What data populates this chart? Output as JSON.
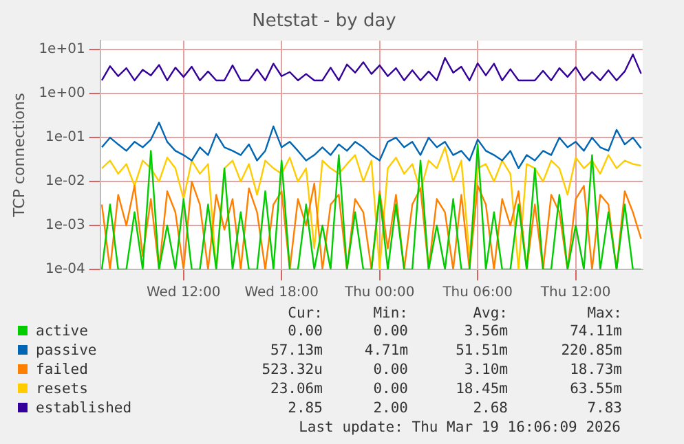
{
  "chart_data": {
    "type": "line",
    "title": "Netstat - by day",
    "ylabel": "TCP connections",
    "log": "y",
    "grid": true,
    "legend": "bottom",
    "marker": "none",
    "line_style": "solid",
    "xlim": [
      "2026-03-18T06:54",
      "2026-03-19T16:06"
    ],
    "xticks": [
      {
        "value": "2026-03-18T12:00",
        "label": "Wed 12:00"
      },
      {
        "value": "2026-03-18T18:00",
        "label": "Wed 18:00"
      },
      {
        "value": "2026-03-19T00:00",
        "label": "Thu 00:00"
      },
      {
        "value": "2026-03-19T06:00",
        "label": "Thu 06:00"
      },
      {
        "value": "2026-03-19T12:00",
        "label": "Thu 12:00"
      }
    ],
    "ylim": [
      0.0001,
      16
    ],
    "yticks": [
      {
        "value": 0.0001,
        "label": "1e-04"
      },
      {
        "value": 0.001,
        "label": "1e-03"
      },
      {
        "value": 0.01,
        "label": "1e-02"
      },
      {
        "value": 0.1,
        "label": "1e-01"
      },
      {
        "value": 1,
        "label": "1e+00"
      },
      {
        "value": 10,
        "label": "1e+01"
      }
    ],
    "x": [
      "2026-03-18T07:00",
      "2026-03-18T07:30",
      "2026-03-18T08:00",
      "2026-03-18T08:30",
      "2026-03-18T09:00",
      "2026-03-18T09:30",
      "2026-03-18T10:00",
      "2026-03-18T10:30",
      "2026-03-18T11:00",
      "2026-03-18T11:30",
      "2026-03-18T12:00",
      "2026-03-18T12:30",
      "2026-03-18T13:00",
      "2026-03-18T13:30",
      "2026-03-18T14:00",
      "2026-03-18T14:30",
      "2026-03-18T15:00",
      "2026-03-18T15:30",
      "2026-03-18T16:00",
      "2026-03-18T16:30",
      "2026-03-18T17:00",
      "2026-03-18T17:30",
      "2026-03-18T18:00",
      "2026-03-18T18:30",
      "2026-03-18T19:00",
      "2026-03-18T19:30",
      "2026-03-18T20:00",
      "2026-03-18T20:30",
      "2026-03-18T21:00",
      "2026-03-18T21:30",
      "2026-03-18T22:00",
      "2026-03-18T22:30",
      "2026-03-18T23:00",
      "2026-03-18T23:30",
      "2026-03-19T00:00",
      "2026-03-19T00:30",
      "2026-03-19T01:00",
      "2026-03-19T01:30",
      "2026-03-19T02:00",
      "2026-03-19T02:30",
      "2026-03-19T03:00",
      "2026-03-19T03:30",
      "2026-03-19T04:00",
      "2026-03-19T04:30",
      "2026-03-19T05:00",
      "2026-03-19T05:30",
      "2026-03-19T06:00",
      "2026-03-19T06:30",
      "2026-03-19T07:00",
      "2026-03-19T07:30",
      "2026-03-19T08:00",
      "2026-03-19T08:30",
      "2026-03-19T09:00",
      "2026-03-19T09:30",
      "2026-03-19T10:00",
      "2026-03-19T10:30",
      "2026-03-19T11:00",
      "2026-03-19T11:30",
      "2026-03-19T12:00",
      "2026-03-19T12:30",
      "2026-03-19T13:00",
      "2026-03-19T13:30",
      "2026-03-19T14:00",
      "2026-03-19T14:30",
      "2026-03-19T15:00",
      "2026-03-19T15:30",
      "2026-03-19T16:00"
    ],
    "series": [
      {
        "name": "active",
        "color": "#00cc00",
        "values": [
          0.0001,
          0.003,
          0.0001,
          0.0001,
          0.002,
          0.0001,
          0.05,
          0.0001,
          0.001,
          0.0001,
          0.004,
          0.0001,
          0.0001,
          0.003,
          0.0001,
          0.02,
          0.0001,
          0.002,
          0.0001,
          0.0001,
          0.006,
          0.0001,
          0.03,
          0.0001,
          0.0001,
          0.003,
          0.0001,
          0.001,
          0.0001,
          0.04,
          0.0001,
          0.002,
          0.0001,
          0.0001,
          0.005,
          0.0001,
          0.003,
          0.0001,
          0.0001,
          0.03,
          0.0001,
          0.001,
          0.0001,
          0.004,
          0.0001,
          0.0001,
          0.07,
          0.0001,
          0.002,
          0.0001,
          0.0001,
          0.003,
          0.0001,
          0.02,
          0.0001,
          0.0001,
          0.005,
          0.0001,
          0.001,
          0.0001,
          0.04,
          0.0001,
          0.002,
          0.0001,
          0.003,
          0.0001,
          0.0001
        ]
      },
      {
        "name": "passive",
        "color": "#0066b3",
        "values": [
          0.06,
          0.1,
          0.07,
          0.05,
          0.08,
          0.06,
          0.09,
          0.22,
          0.08,
          0.05,
          0.04,
          0.03,
          0.06,
          0.04,
          0.12,
          0.06,
          0.05,
          0.04,
          0.07,
          0.03,
          0.05,
          0.18,
          0.06,
          0.08,
          0.05,
          0.03,
          0.04,
          0.06,
          0.04,
          0.07,
          0.05,
          0.08,
          0.06,
          0.04,
          0.03,
          0.08,
          0.1,
          0.06,
          0.08,
          0.04,
          0.1,
          0.06,
          0.08,
          0.04,
          0.05,
          0.03,
          0.09,
          0.05,
          0.04,
          0.03,
          0.05,
          0.02,
          0.04,
          0.03,
          0.05,
          0.04,
          0.1,
          0.06,
          0.08,
          0.05,
          0.1,
          0.06,
          0.05,
          0.15,
          0.07,
          0.1,
          0.057
        ]
      },
      {
        "name": "failed",
        "color": "#ff8000",
        "values": [
          0.003,
          0.0001,
          0.005,
          0.001,
          0.008,
          0.0002,
          0.004,
          0.0001,
          0.006,
          0.002,
          0.0001,
          0.01,
          0.003,
          0.0001,
          0.005,
          0.0008,
          0.004,
          0.0001,
          0.007,
          0.002,
          0.0001,
          0.003,
          0.006,
          0.0001,
          0.004,
          0.001,
          0.009,
          0.0001,
          0.003,
          0.005,
          0.0001,
          0.004,
          0.002,
          0.0001,
          0.006,
          0.0003,
          0.005,
          0.0001,
          0.003,
          0.007,
          0.0001,
          0.004,
          0.002,
          0.0001,
          0.005,
          0.0001,
          0.008,
          0.003,
          0.0001,
          0.004,
          0.001,
          0.006,
          0.0001,
          0.003,
          0.0001,
          0.005,
          0.002,
          0.0001,
          0.004,
          0.008,
          0.0001,
          0.005,
          0.003,
          0.0001,
          0.006,
          0.002,
          0.0005
        ]
      },
      {
        "name": "resets",
        "color": "#ffcc00",
        "values": [
          0.02,
          0.03,
          0.015,
          0.025,
          0.008,
          0.03,
          0.02,
          0.01,
          0.035,
          0.02,
          0.004,
          0.03,
          0.015,
          0.025,
          0.0001,
          0.02,
          0.03,
          0.01,
          0.025,
          0.005,
          0.03,
          0.02,
          0.015,
          0.035,
          0.01,
          0.02,
          0.0003,
          0.03,
          0.02,
          0.015,
          0.025,
          0.04,
          0.01,
          0.03,
          0.0001,
          0.02,
          0.035,
          0.015,
          0.025,
          0.006,
          0.03,
          0.02,
          0.06,
          0.01,
          0.03,
          0.0002,
          0.02,
          0.025,
          0.01,
          0.03,
          0.015,
          0.0001,
          0.025,
          0.02,
          0.01,
          0.03,
          0.02,
          0.005,
          0.035,
          0.02,
          0.03,
          0.015,
          0.04,
          0.02,
          0.03,
          0.025,
          0.023
        ]
      },
      {
        "name": "established",
        "color": "#330099",
        "values": [
          2,
          4.2,
          2.5,
          3.8,
          2,
          3.5,
          2.6,
          4.5,
          2,
          3.9,
          2.4,
          4.1,
          2,
          3.2,
          2,
          2,
          4.4,
          2,
          2,
          3.6,
          2,
          4.8,
          2.5,
          3.1,
          2,
          2.8,
          2,
          2,
          3.9,
          2,
          4.6,
          3,
          5.2,
          2.8,
          4.4,
          2.5,
          3.8,
          2,
          3.4,
          2,
          3.2,
          2,
          6.5,
          3,
          4.1,
          2,
          4.9,
          2.6,
          4.8,
          2,
          3.6,
          2,
          2,
          2,
          3.3,
          2,
          3.8,
          2.4,
          4,
          2,
          3.1,
          2,
          3.4,
          2,
          3.2,
          7.8,
          2.85
        ]
      }
    ],
    "annotations": [
      "Cur:",
      "Min:",
      "Avg:",
      "Max:",
      "0.00",
      "0.00",
      "3.56m",
      "74.11m",
      "57.13m",
      "4.71m",
      "51.51m",
      "220.85m",
      "523.32u",
      "0.00",
      "3.10m",
      "18.73m",
      "23.06m",
      "0.00",
      "18.45m",
      "63.55m",
      "2.85",
      "2.00",
      "2.68",
      "7.83",
      "Last update: Thu Mar 19 16:06:09 2026"
    ]
  }
}
